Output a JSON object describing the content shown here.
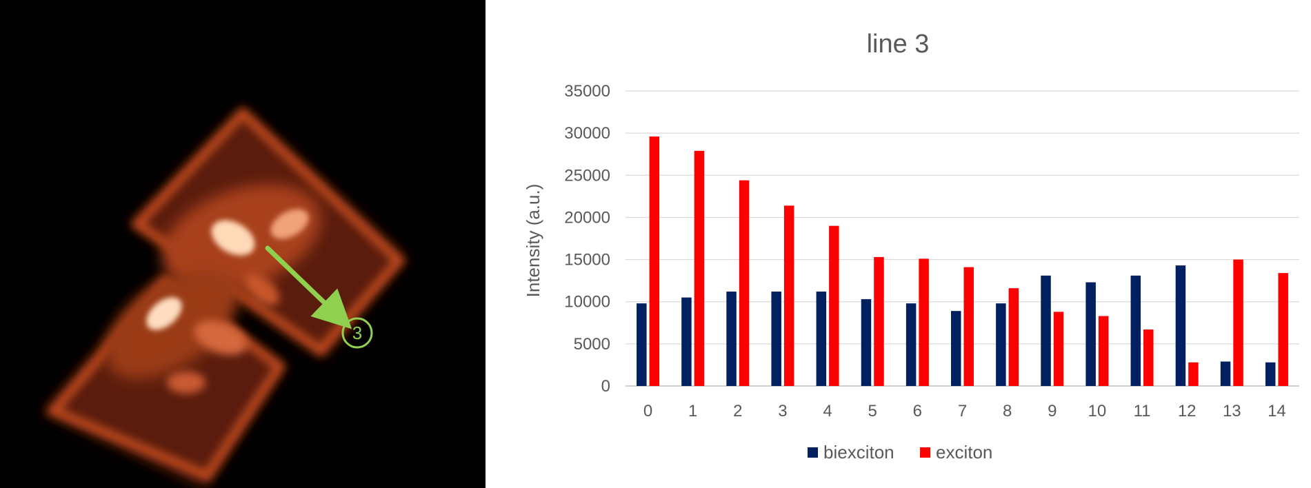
{
  "micrograph": {
    "marker_label": "3",
    "arrow_color": "#8fd14f"
  },
  "chart_data": {
    "type": "bar",
    "title": "line 3",
    "xlabel": "",
    "ylabel": "Intensity (a.u.)",
    "categories": [
      "0",
      "1",
      "2",
      "3",
      "4",
      "5",
      "6",
      "7",
      "8",
      "9",
      "10",
      "11",
      "12",
      "13",
      "14"
    ],
    "series": [
      {
        "name": "biexciton",
        "color": "#002060",
        "values": [
          9800,
          10500,
          11200,
          11200,
          11200,
          10300,
          9800,
          8900,
          9800,
          13100,
          12300,
          13100,
          14300,
          2900,
          2800
        ]
      },
      {
        "name": "exciton",
        "color": "#ff0000",
        "values": [
          29600,
          27900,
          24400,
          21400,
          19000,
          15300,
          15100,
          14100,
          11600,
          8800,
          8300,
          6700,
          2800,
          15000,
          13400
        ]
      }
    ],
    "ylim": [
      0,
      35000
    ],
    "yticks": [
      0,
      5000,
      10000,
      15000,
      20000,
      25000,
      30000,
      35000
    ],
    "grid": true,
    "legend_position": "bottom"
  }
}
